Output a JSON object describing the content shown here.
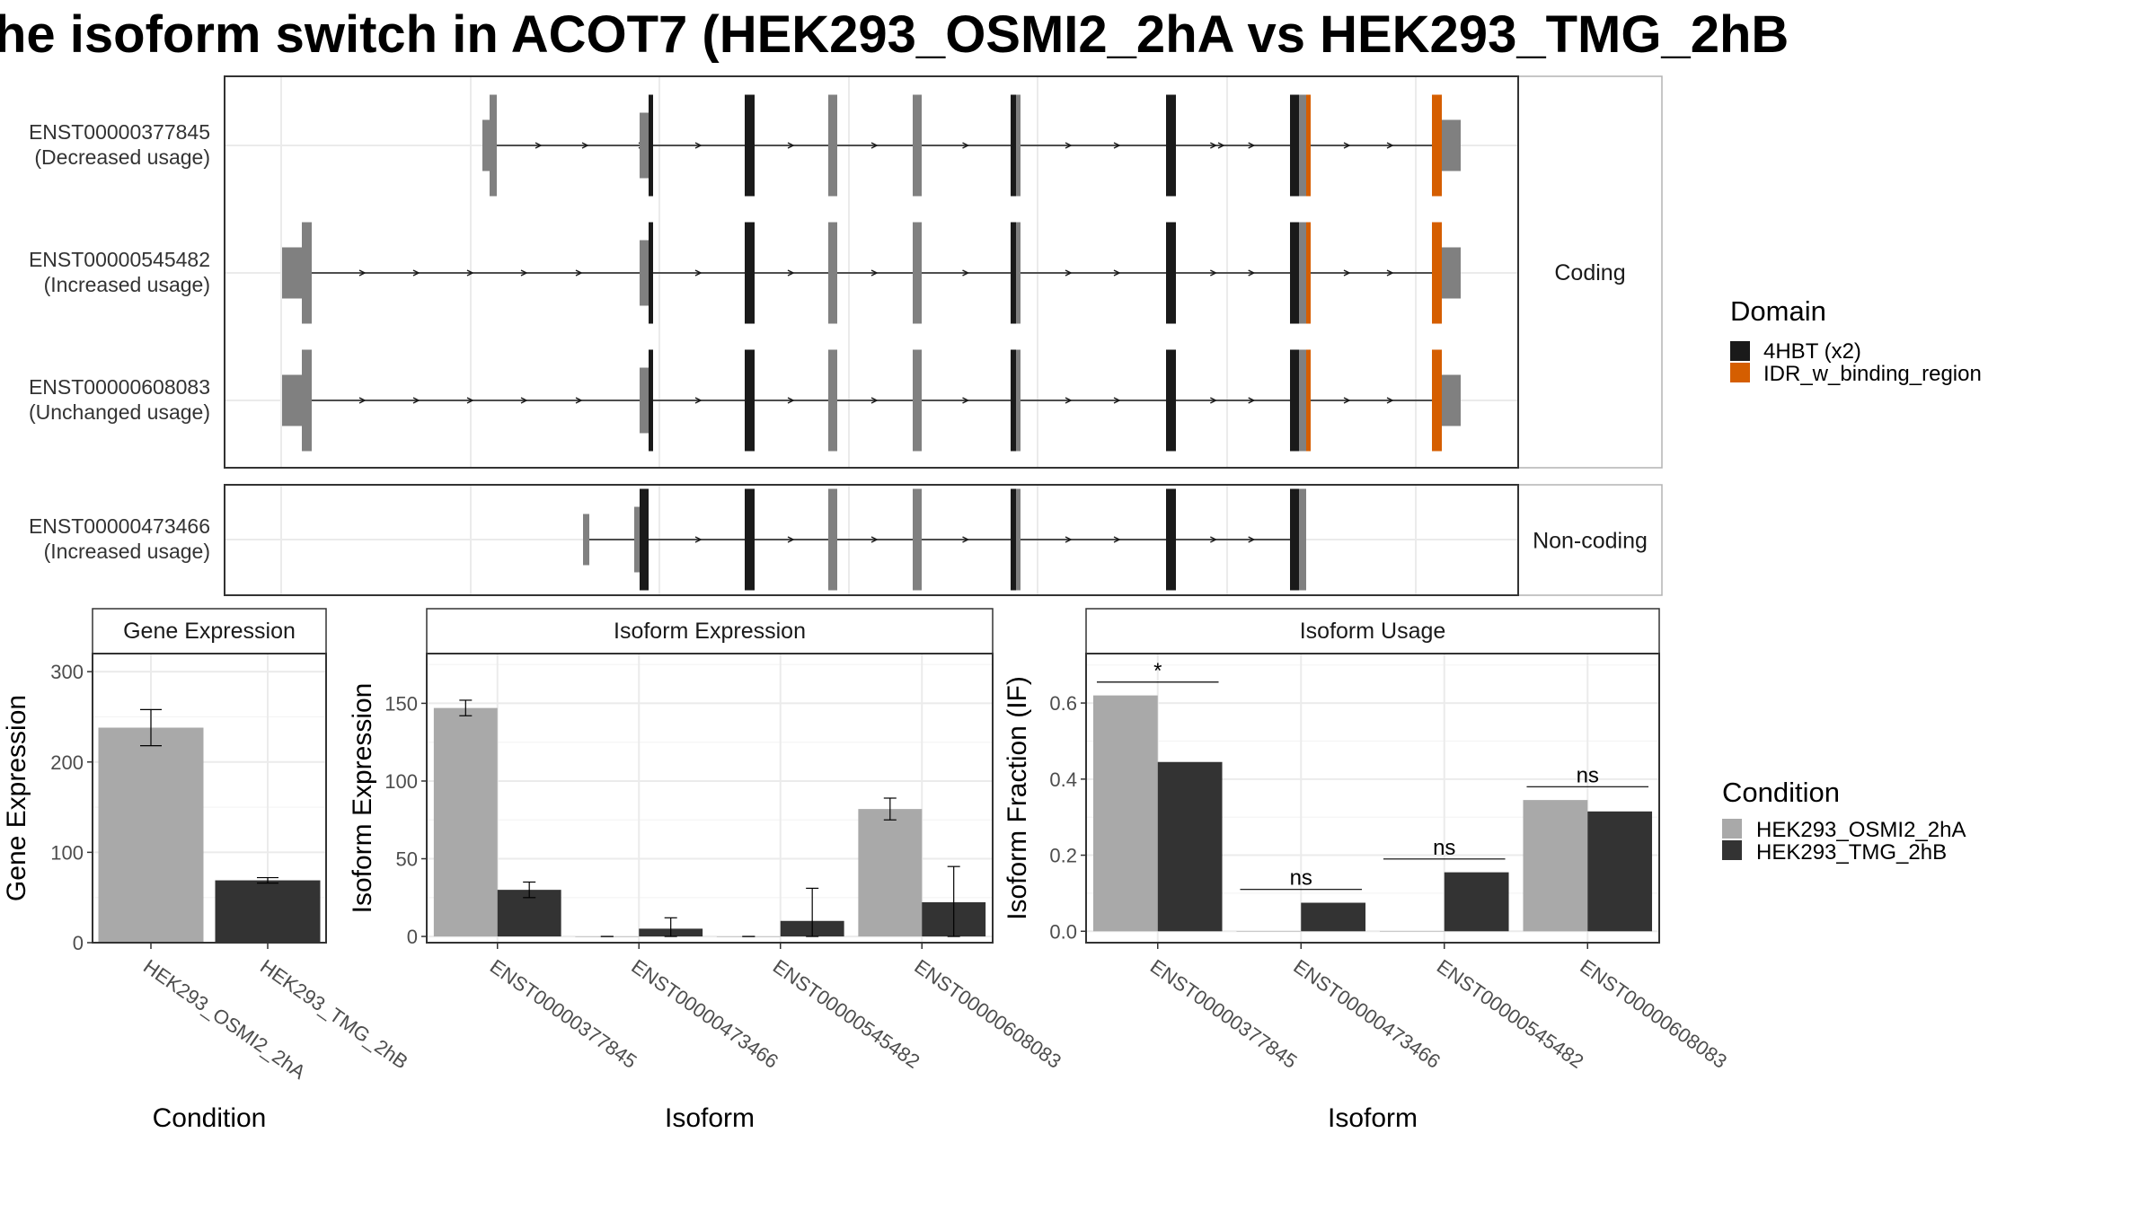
{
  "title": "he isoform switch in ACOT7 (HEK293_OSMI2_2hA vs HEK293_TMG_2hB",
  "colors": {
    "cond1": "#a9a9a9",
    "cond2": "#333333",
    "utr": "#808080",
    "domain_4hbt": "#1a1a1a",
    "domain_idr": "#d55e00"
  },
  "transcripts": {
    "panels": [
      {
        "label": "Coding",
        "rows": [
          {
            "id": "ENST00000377845",
            "usage": "(Decreased usage)"
          },
          {
            "id": "ENST00000545482",
            "usage": "(Increased usage)"
          },
          {
            "id": "ENST00000608083",
            "usage": "(Unchanged usage)"
          }
        ]
      },
      {
        "label": "Non-coding",
        "rows": [
          {
            "id": "ENST00000473466",
            "usage": "(Increased usage)"
          }
        ]
      }
    ]
  },
  "domain_legend": {
    "title": "Domain",
    "items": [
      {
        "label": "4HBT (x2)",
        "color": "#1a1a1a"
      },
      {
        "label": "IDR_w_binding_region",
        "color": "#d55e00"
      }
    ]
  },
  "condition_legend": {
    "title": "Condition",
    "items": [
      {
        "label": "HEK293_OSMI2_2hA",
        "color": "#a9a9a9"
      },
      {
        "label": "HEK293_TMG_2hB",
        "color": "#333333"
      }
    ]
  },
  "chart_data": [
    {
      "type": "bar",
      "title": "Gene Expression",
      "xlabel": "Condition",
      "ylabel": "Gene Expression",
      "ylim": [
        0,
        320
      ],
      "yticks": [
        0,
        100,
        200,
        300
      ],
      "categories": [
        "HEK293_OSMI2_2hA",
        "HEK293_TMG_2hB"
      ],
      "values": [
        238,
        69
      ],
      "error": [
        [
          218,
          258
        ],
        [
          66,
          72
        ]
      ],
      "colors": [
        "#a9a9a9",
        "#333333"
      ]
    },
    {
      "type": "bar",
      "title": "Isoform Expression",
      "xlabel": "Isoform",
      "ylabel": "Isoform Expression",
      "ylim": [
        -4,
        182
      ],
      "yticks": [
        0,
        50,
        100,
        150
      ],
      "categories": [
        "ENST00000377845",
        "ENST00000473466",
        "ENST00000545482",
        "ENST00000608083"
      ],
      "series": [
        {
          "name": "HEK293_OSMI2_2hA",
          "values": [
            147,
            0,
            0,
            82
          ],
          "error": [
            [
              142,
              152
            ],
            [
              0,
              0
            ],
            [
              0,
              0
            ],
            [
              75,
              89
            ]
          ]
        },
        {
          "name": "HEK293_TMG_2hB",
          "values": [
            30,
            5,
            10,
            22
          ],
          "error": [
            [
              25,
              35
            ],
            [
              0,
              12
            ],
            [
              0,
              31
            ],
            [
              0,
              45
            ]
          ]
        }
      ]
    },
    {
      "type": "bar",
      "title": "Isoform Usage",
      "xlabel": "Isoform",
      "ylabel": "Isoform Fraction (IF)",
      "ylim": [
        -0.03,
        0.73
      ],
      "yticks": [
        "0.0",
        "0.2",
        "0.4",
        "0.6"
      ],
      "categories": [
        "ENST00000377845",
        "ENST00000473466",
        "ENST00000545482",
        "ENST00000608083"
      ],
      "series": [
        {
          "name": "HEK293_OSMI2_2hA",
          "values": [
            0.62,
            0,
            0,
            0.345
          ]
        },
        {
          "name": "HEK293_TMG_2hB",
          "values": [
            0.445,
            0.075,
            0.155,
            0.315
          ]
        }
      ],
      "significance": [
        "*",
        "ns",
        "ns",
        "ns"
      ]
    }
  ]
}
